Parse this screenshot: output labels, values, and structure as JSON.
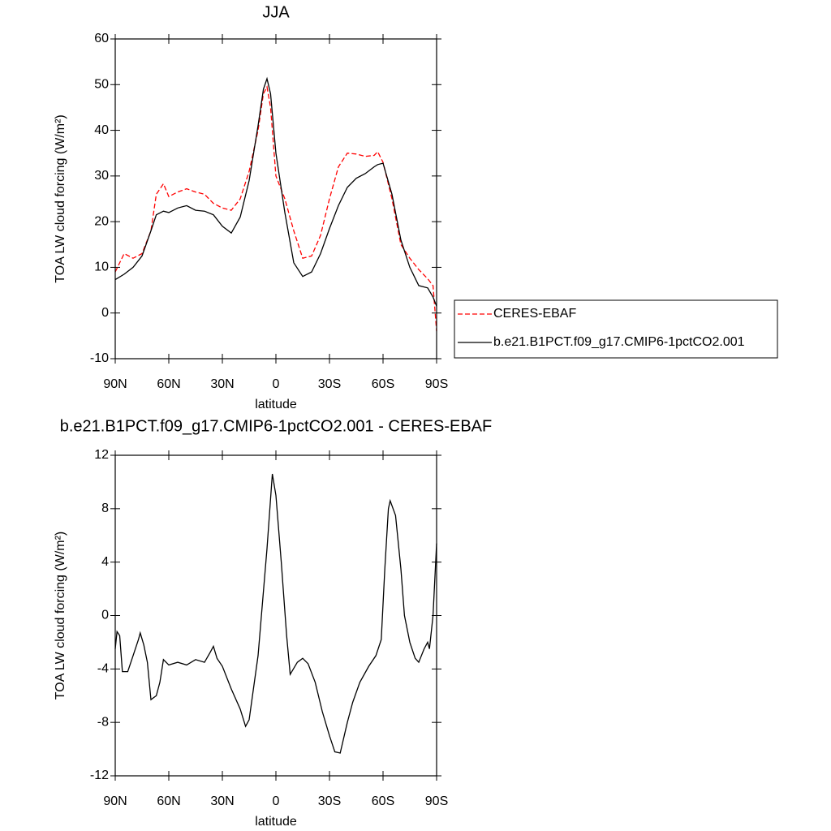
{
  "chart_data": [
    {
      "type": "line",
      "title": "JJA",
      "x_label": "latitude",
      "y_label": "TOA LW cloud forcing (W/m²)",
      "x": [
        90,
        85,
        80,
        75,
        70,
        67,
        63,
        60,
        55,
        50,
        45,
        40,
        35,
        30,
        25,
        20,
        15,
        10,
        7,
        5,
        3,
        0,
        -5,
        -10,
        -15,
        -20,
        -25,
        -30,
        -35,
        -40,
        -45,
        -50,
        -55,
        -57,
        -60,
        -65,
        -70,
        -75,
        -80,
        -85,
        -88,
        -90
      ],
      "series": [
        {
          "name": "CERES-EBAF",
          "color": "#ff0000",
          "style": "dashed",
          "values": [
            9,
            13,
            12,
            13,
            18,
            26,
            28.3,
            25.5,
            26.5,
            27.2,
            26.5,
            26,
            24,
            23,
            22.5,
            25,
            31,
            40,
            48,
            49.5,
            45,
            30,
            25,
            18,
            12,
            12.5,
            17,
            25,
            32,
            35,
            34.8,
            34.3,
            34.5,
            35.3,
            33,
            25,
            15,
            12,
            9.5,
            7.5,
            6,
            -4
          ]
        },
        {
          "name": "b.e21.B1PCT.f09_g17.CMIP6-1pctCO2.001",
          "color": "#000000",
          "style": "solid",
          "values": [
            7.3,
            8.5,
            10,
            12.5,
            18,
            21.5,
            22.3,
            22,
            23,
            23.5,
            22.5,
            22.3,
            21.5,
            19,
            17.5,
            21,
            29,
            41,
            49,
            51.3,
            48,
            35,
            22,
            11,
            8,
            9,
            13,
            18.5,
            23.5,
            27.5,
            29.5,
            30.5,
            32,
            32.5,
            32.8,
            26,
            16,
            10,
            6,
            5.5,
            3.5,
            1.5
          ]
        }
      ],
      "xlim": [
        90,
        -90
      ],
      "xticks": [
        {
          "value": 90,
          "label": "90N"
        },
        {
          "value": 60,
          "label": "60N"
        },
        {
          "value": 30,
          "label": "30N"
        },
        0,
        {
          "value": -30,
          "label": "30S"
        },
        {
          "value": -60,
          "label": "60S"
        },
        {
          "value": -90,
          "label": "90S"
        }
      ],
      "ylim": [
        -10,
        60
      ],
      "yticks": [
        -10,
        0,
        10,
        20,
        30,
        40,
        50,
        60
      ],
      "legend": "right"
    },
    {
      "type": "line",
      "title": "b.e21.B1PCT.f09_g17.CMIP6-1pctCO2.001 - CERES-EBAF",
      "x_label": "latitude",
      "y_label": "TOA LW cloud forcing (W/m²)",
      "x": [
        90,
        89,
        87.5,
        86,
        83,
        80,
        77,
        76,
        74,
        72,
        70,
        67,
        65,
        63,
        60,
        55,
        50,
        45,
        40,
        37,
        35,
        33,
        30,
        25,
        20,
        17,
        15,
        10,
        5,
        2,
        0,
        -3,
        -6,
        -8,
        -12,
        -15,
        -18,
        -22,
        -26,
        -30,
        -33,
        -36,
        -40,
        -43,
        -47,
        -52,
        -56,
        -59,
        -61,
        -63,
        -64,
        -67,
        -70,
        -72,
        -75,
        -78,
        -80,
        -83,
        -85,
        -86,
        -88,
        -90
      ],
      "series": [
        {
          "color": "#000000",
          "style": "solid",
          "values": [
            -2.5,
            -1.2,
            -1.5,
            -4.2,
            -4.2,
            -3,
            -1.8,
            -1.3,
            -2.2,
            -3.5,
            -6.3,
            -6,
            -5,
            -3.3,
            -3.7,
            -3.5,
            -3.7,
            -3.3,
            -3.5,
            -2.8,
            -2.3,
            -3.2,
            -3.8,
            -5.5,
            -7,
            -8.3,
            -7.8,
            -3,
            5,
            10.6,
            9,
            4,
            -1.5,
            -4.4,
            -3.5,
            -3.2,
            -3.6,
            -5,
            -7.2,
            -9,
            -10.2,
            -10.3,
            -8,
            -6.5,
            -5,
            -3.8,
            -3,
            -1.8,
            3.5,
            8,
            8.6,
            7.5,
            3.5,
            0,
            -2,
            -3.2,
            -3.5,
            -2.5,
            -2,
            -2.5,
            0,
            5.4
          ]
        }
      ],
      "xlim": [
        90,
        -90
      ],
      "xticks": [
        {
          "value": 90,
          "label": "90N"
        },
        {
          "value": 60,
          "label": "60N"
        },
        {
          "value": 30,
          "label": "30N"
        },
        0,
        {
          "value": -30,
          "label": "30S"
        },
        {
          "value": -60,
          "label": "60S"
        },
        {
          "value": -90,
          "label": "90S"
        }
      ],
      "ylim": [
        -12,
        12
      ],
      "yticks": [
        -12,
        -8,
        -4,
        0,
        4,
        8,
        12
      ]
    }
  ]
}
